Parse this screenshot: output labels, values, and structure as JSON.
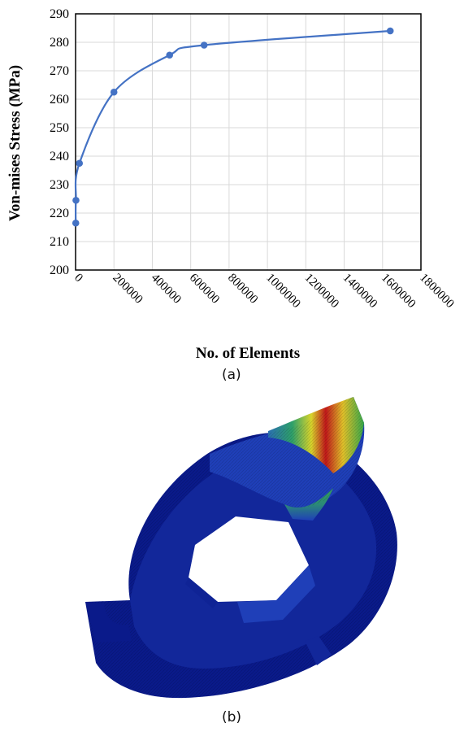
{
  "chart_data": {
    "type": "scatter",
    "title": "",
    "xlabel": "No. of Elements",
    "ylabel": "Von-mises Stress (MPa)",
    "xlim": [
      0,
      1800000
    ],
    "ylim": [
      200,
      290
    ],
    "x_ticks": [
      "0",
      "200000",
      "400000",
      "600000",
      "800000",
      "1000000",
      "1200000",
      "1400000",
      "1600000",
      "1800000"
    ],
    "y_ticks": [
      "200",
      "210",
      "220",
      "230",
      "240",
      "250",
      "260",
      "270",
      "280",
      "290"
    ],
    "grid": true,
    "legend": "none",
    "line": "smooth",
    "color": "#4472C4",
    "series": [
      {
        "x": [
          1000,
          2000,
          20000,
          200000,
          490000,
          670000,
          1640000
        ],
        "y": [
          216.5,
          224.5,
          237.5,
          262.5,
          275.5,
          279,
          284
        ]
      }
    ]
  },
  "captions": {
    "a": "(a)",
    "b": "(b)"
  },
  "figure_b": {
    "icon": "fem-stress-contour-model-icon",
    "colors": [
      "#0a1a8a",
      "#1f3fb8",
      "#29a35a",
      "#e3e02a",
      "#c0181a"
    ]
  }
}
